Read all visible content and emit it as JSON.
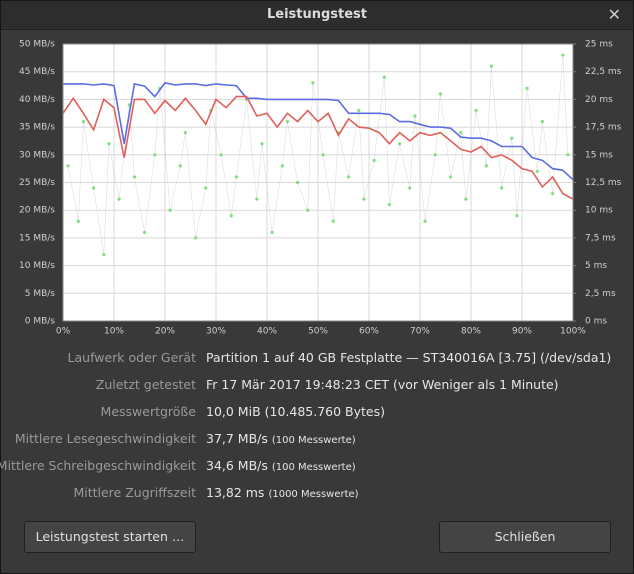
{
  "window_title": "Leistungstest",
  "chart_data": {
    "type": "line",
    "xlim": [
      0,
      100
    ],
    "xticks": [
      {
        "value": 0,
        "label": "0%"
      },
      {
        "value": 10,
        "label": "10%"
      },
      {
        "value": 20,
        "label": "20%"
      },
      {
        "value": 30,
        "label": "30%"
      },
      {
        "value": 40,
        "label": "40%"
      },
      {
        "value": 50,
        "label": "50%"
      },
      {
        "value": 60,
        "label": "60%"
      },
      {
        "value": 70,
        "label": "70%"
      },
      {
        "value": 80,
        "label": "80%"
      },
      {
        "value": 90,
        "label": "90%"
      },
      {
        "value": 100,
        "label": "100%"
      }
    ],
    "ylim": [
      0,
      50
    ],
    "yticks": [
      {
        "value": 0,
        "label": "0 MB/s"
      },
      {
        "value": 5,
        "label": "5 MB/s"
      },
      {
        "value": 10,
        "label": "10 MB/s"
      },
      {
        "value": 15,
        "label": "15 MB/s"
      },
      {
        "value": 20,
        "label": "20 MB/s"
      },
      {
        "value": 25,
        "label": "25 MB/s"
      },
      {
        "value": 30,
        "label": "30 MB/s"
      },
      {
        "value": 35,
        "label": "35 MB/s"
      },
      {
        "value": 40,
        "label": "40 MB/s"
      },
      {
        "value": 45,
        "label": "45 MB/s"
      },
      {
        "value": 50,
        "label": "50 MB/s"
      }
    ],
    "y2lim": [
      0,
      25
    ],
    "y2ticks": [
      {
        "value": 0,
        "label": "0 ms"
      },
      {
        "value": 2.5,
        "label": "2,5 ms"
      },
      {
        "value": 5,
        "label": "5 ms"
      },
      {
        "value": 7.5,
        "label": "7,5 ms"
      },
      {
        "value": 10,
        "label": "10 ms"
      },
      {
        "value": 12.5,
        "label": "12,5 ms"
      },
      {
        "value": 15,
        "label": "15 ms"
      },
      {
        "value": 17.5,
        "label": "17,5 ms"
      },
      {
        "value": 20,
        "label": "20 ms"
      },
      {
        "value": 22.5,
        "label": "22,5 ms"
      },
      {
        "value": 25,
        "label": "25 ms"
      }
    ],
    "grid": true,
    "series": [
      {
        "type": "line",
        "color": "#5b6ee1",
        "x": [
          0,
          2,
          4,
          6,
          8,
          10,
          12,
          14,
          16,
          18,
          20,
          22,
          24,
          26,
          28,
          30,
          32,
          34,
          36,
          38,
          40,
          42,
          44,
          46,
          48,
          50,
          52,
          54,
          56,
          58,
          60,
          62,
          64,
          66,
          68,
          70,
          72,
          74,
          76,
          78,
          80,
          82,
          84,
          86,
          88,
          90,
          92,
          94,
          96,
          98,
          100
        ],
        "values": [
          42.8,
          42.8,
          42.8,
          42.6,
          42.8,
          42.5,
          32,
          42.8,
          42.4,
          40.5,
          43,
          42.6,
          42.8,
          42.8,
          42.5,
          42.8,
          42.6,
          42.5,
          40.2,
          40.2,
          40,
          40,
          40,
          40,
          40,
          40,
          40,
          39.8,
          37.5,
          37.5,
          37.5,
          37.5,
          37.3,
          36,
          36,
          35.5,
          35,
          35,
          34.8,
          33.2,
          33,
          33,
          32.5,
          31.5,
          31.5,
          31.5,
          29.5,
          29,
          27.5,
          27.2,
          25.5
        ]
      },
      {
        "type": "line",
        "color": "#e0605a",
        "x": [
          0,
          2,
          4,
          6,
          8,
          10,
          12,
          14,
          16,
          18,
          20,
          22,
          24,
          26,
          28,
          30,
          32,
          34,
          36,
          38,
          40,
          42,
          44,
          46,
          48,
          50,
          52,
          54,
          56,
          58,
          60,
          62,
          64,
          66,
          68,
          70,
          72,
          74,
          76,
          78,
          80,
          82,
          84,
          86,
          88,
          90,
          92,
          94,
          96,
          98,
          100
        ],
        "values": [
          37.5,
          40.2,
          37.5,
          34.5,
          40,
          38.5,
          29.5,
          40,
          40,
          37.5,
          39.8,
          38,
          40.2,
          38,
          35.5,
          40,
          38.5,
          40.5,
          40.5,
          37,
          37.5,
          35,
          37.5,
          36,
          38,
          36,
          37.5,
          33.5,
          36.5,
          35,
          34.8,
          34,
          32,
          34,
          32.5,
          34,
          33.5,
          34,
          32.5,
          31,
          30.5,
          31.5,
          29.5,
          30,
          29,
          27.5,
          27,
          24.2,
          26,
          23,
          22
        ]
      },
      {
        "type": "scatter",
        "color": "#7de07d",
        "axis": "y2",
        "x": [
          1,
          3,
          4,
          6,
          8,
          9,
          11,
          13,
          14,
          16,
          18,
          19,
          21,
          23,
          24,
          26,
          28,
          29,
          31,
          33,
          34,
          36,
          38,
          39,
          41,
          43,
          44,
          46,
          48,
          49,
          51,
          53,
          54,
          56,
          58,
          59,
          61,
          63,
          64,
          66,
          68,
          69,
          71,
          73,
          74,
          76,
          78,
          79,
          81,
          83,
          84,
          86,
          88,
          89,
          91,
          93,
          94,
          96,
          98,
          99
        ],
        "values": [
          14,
          9,
          18,
          12,
          6,
          16,
          11,
          19.5,
          13,
          8,
          15,
          21,
          10,
          14,
          17,
          7.5,
          12,
          19,
          15,
          9.5,
          13,
          20,
          11,
          16,
          8,
          14,
          18,
          12.5,
          10,
          21.5,
          15,
          9,
          17,
          13,
          19,
          11,
          14.5,
          22,
          10.5,
          16,
          12,
          18.5,
          9,
          15,
          20.5,
          13,
          17,
          11,
          19,
          14,
          23,
          12,
          16.5,
          9.5,
          21,
          13.5,
          18,
          11.5,
          24,
          15
        ]
      }
    ]
  },
  "info": [
    {
      "label": "Laufwerk oder Gerät",
      "value": "Partition 1 auf 40 GB Festplatte — ST340016A [3.75] (/dev/sda1)"
    },
    {
      "label": "Zuletzt getestet",
      "value": "Fr 17 Mär 2017 19:48:23 CET (vor Weniger als 1 Minute)"
    },
    {
      "label": "Messwertgröße",
      "value": "10,0 MiB (10.485.760 Bytes)"
    },
    {
      "label": "Mittlere Lesegeschwindigkeit",
      "value": "37,7 MB/s",
      "note": "(100 Messwerte)"
    },
    {
      "label": "Mittlere Schreibgeschwindigkeit",
      "value": "34,6 MB/s",
      "note": "(100 Messwerte)"
    },
    {
      "label": "Mittlere Zugriffszeit",
      "value": "13,82 ms",
      "note": "(1000 Messwerte)"
    }
  ],
  "buttons": [
    "Leistungstest starten …",
    "Schließen"
  ]
}
